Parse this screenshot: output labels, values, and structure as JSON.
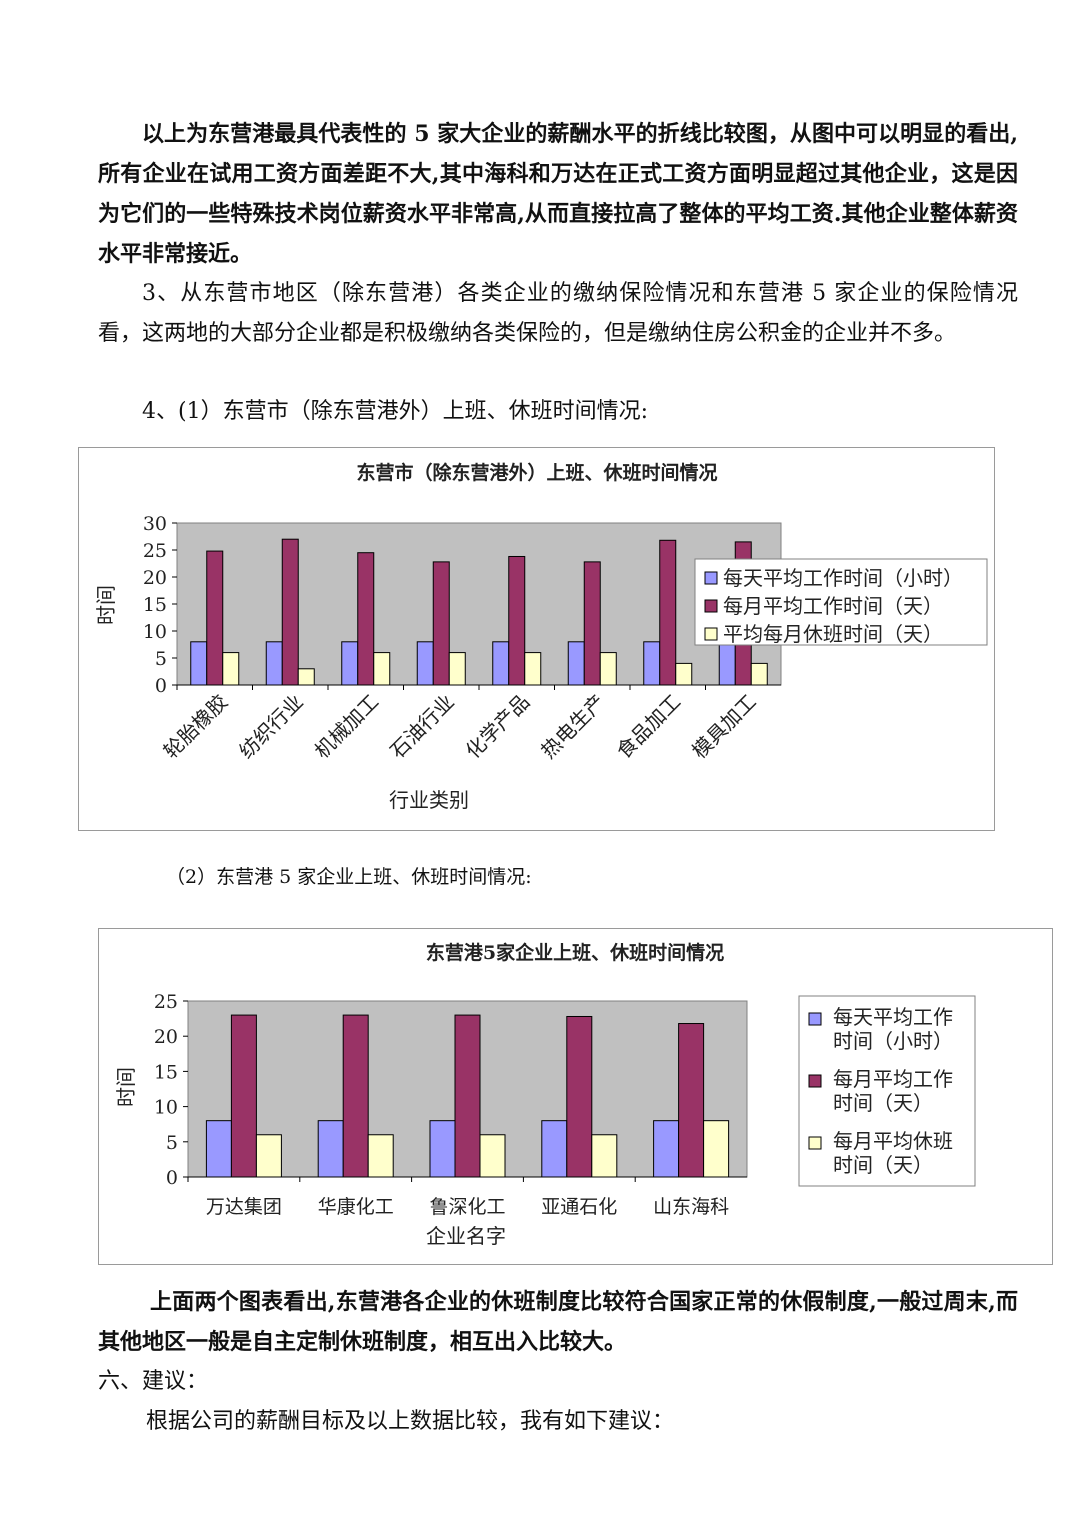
{
  "paragraphs": {
    "p1": "以上为东营港最具代表性的 5 家大企业的薪酬水平的折线比较图，从图中可以明显的看出,所有企业在试用工资方面差距不大,其中海科和万达在正式工资方面明显超过其他企业，这是因为它们的一些特殊技术岗位薪资水平非常高,从而直接拉高了整体的平均工资.其他企业整体薪资水平非常接近。",
    "p2": "3、从东营市地区（除东营港）各类企业的缴纳保险情况和东营港 5 家企业的保险情况看，这两地的大部分企业都是积极缴纳各类保险的，但是缴纳住房公积金的企业并不多。",
    "p3": "4、(1）东营市（除东营港外）上班、休班时间情况:",
    "p4": "（2）东营港 5 家企业上班、休班时间情况:",
    "p5": "上面两个图表看出,东营港各企业的休班制度比较符合国家正常的休假制度,一般过周末,而其他地区一般是自主定制休班制度，相互出入比较大。",
    "h6": "六、建议：",
    "p6": "根据公司的薪酬目标及以上数据比较，我有如下建议："
  },
  "colors": {
    "series1": "#9999ff",
    "series2": "#993366",
    "series3": "#ffffcc",
    "plot_bg": "#c0c0c0"
  },
  "chart_data": [
    {
      "type": "bar",
      "title": "东营市（除东营港外）上班、休班时间情况",
      "xlabel": "行业类别",
      "ylabel": "时间",
      "ylim": [
        0,
        30
      ],
      "yticks": [
        "0",
        "5",
        "10",
        "15",
        "20",
        "25",
        "30"
      ],
      "categories": [
        "轮胎橡胶",
        "纺织行业",
        "机械加工",
        "石油行业",
        "化学产品",
        "热电生产",
        "食品加工",
        "模具加工"
      ],
      "series": [
        {
          "name": "每天平均工作时间（小时）",
          "values": [
            8,
            8,
            8,
            8,
            8,
            8,
            8,
            8
          ]
        },
        {
          "name": "每月平均工作时间（天）",
          "values": [
            24.8,
            27,
            24.5,
            22.8,
            23.8,
            22.8,
            26.8,
            26.5
          ]
        },
        {
          "name": "平均每月休班时间（天）",
          "values": [
            6,
            3,
            6,
            6,
            6,
            6,
            4,
            4
          ]
        }
      ],
      "legend": "right",
      "grid": false
    },
    {
      "type": "bar",
      "title": "东营港5家企业上班、休班时间情况",
      "xlabel": "企业名字",
      "ylabel": "时间",
      "ylim": [
        0,
        25
      ],
      "yticks": [
        "0",
        "5",
        "10",
        "15",
        "20",
        "25"
      ],
      "categories": [
        "万达集团",
        "华康化工",
        "鲁深化工",
        "亚通石化",
        "山东海科"
      ],
      "series": [
        {
          "name": "每天平均工作时间（小时）",
          "legend_lines": [
            "每天平均工作",
            "时间（小时）"
          ],
          "values": [
            8,
            8,
            8,
            8,
            8
          ]
        },
        {
          "name": "每月平均工作时间（天）",
          "legend_lines": [
            "每月平均工作",
            "时间（天）"
          ],
          "values": [
            23,
            23,
            23,
            22.8,
            21.8
          ]
        },
        {
          "name": "每月平均休班时间（天）",
          "legend_lines": [
            "每月平均休班",
            "时间（天）"
          ],
          "values": [
            6,
            6,
            6,
            6,
            8
          ]
        }
      ],
      "legend": "right",
      "grid": false
    }
  ]
}
